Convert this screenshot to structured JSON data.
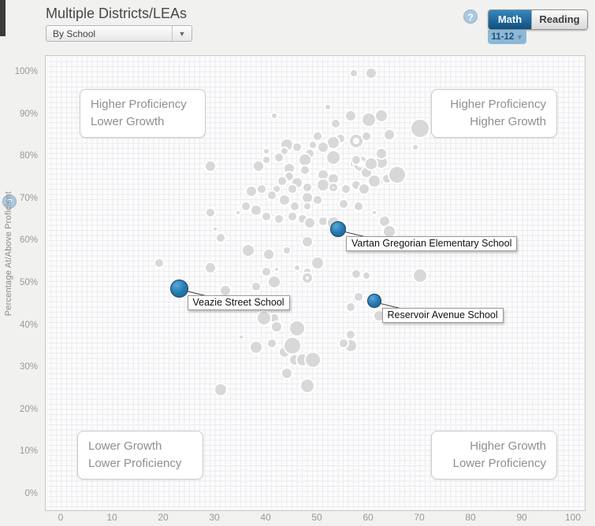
{
  "header": {
    "title": "Multiple Districts/LEAs",
    "view_dropdown": {
      "value": "By School",
      "arrow": "▼"
    },
    "help_icon": "?",
    "subject_tabs": [
      {
        "label": "Math",
        "selected": true
      },
      {
        "label": "Reading",
        "selected": false
      }
    ],
    "grade_dropdown": {
      "value": "11-12",
      "arrow": "▼"
    }
  },
  "left_panel": {
    "help_icon": "?"
  },
  "colors": {
    "highlight": "#2176ad",
    "highlight_light": "#5aa7da",
    "highlight_dark": "#16679f",
    "bubble": "#d8d8d8",
    "selected_tab": "#0d4e7f",
    "grade_button": "#8cb8d7"
  },
  "chart_data": {
    "type": "scatter",
    "title": "",
    "xlabel": "",
    "ylabel": "Percentage At/Above Proficient",
    "xlim": [
      0,
      100
    ],
    "ylim": [
      0,
      100
    ],
    "grid": true,
    "x_ticks": [
      "0",
      "10",
      "20",
      "30",
      "40",
      "50",
      "60",
      "70",
      "80",
      "90",
      "100"
    ],
    "y_ticks": [
      "0%",
      "10%",
      "20%",
      "30%",
      "40%",
      "50%",
      "60%",
      "70%",
      "80%",
      "90%",
      "100%"
    ],
    "quadrant_labels": [
      {
        "position": "top-left",
        "lines": [
          "Higher Proficiency",
          "Lower Growth"
        ]
      },
      {
        "position": "top-right",
        "lines": [
          "Higher Proficiency",
          "Higher Growth"
        ]
      },
      {
        "position": "bottom-left",
        "lines": [
          "Lower Growth",
          "Lower Proficiency"
        ]
      },
      {
        "position": "bottom-right",
        "lines": [
          "Higher Growth",
          "Lower Proficiency"
        ]
      }
    ],
    "highlighted_points": [
      {
        "name": "Veazie Street School",
        "x": 23,
        "y": 49,
        "r": 11.5
      },
      {
        "name": "Vartan Gregorian Elementary School",
        "x": 54,
        "y": 63,
        "r": 10
      },
      {
        "name": "Reservoir Avenue School",
        "x": 61,
        "y": 46,
        "r": 9
      }
    ],
    "background_points": [
      [
        41.5,
        90,
        5
      ],
      [
        52,
        92,
        5
      ],
      [
        56.5,
        90,
        8
      ],
      [
        60,
        89,
        10
      ],
      [
        62.5,
        90,
        9
      ],
      [
        57,
        100,
        6
      ],
      [
        60.5,
        100,
        8
      ],
      [
        53.5,
        88,
        7
      ],
      [
        54.5,
        84.5,
        7
      ],
      [
        57.5,
        84,
        8,
        1
      ],
      [
        53,
        83.5,
        9
      ],
      [
        50,
        85,
        7
      ],
      [
        49,
        83,
        6
      ],
      [
        51,
        82.5,
        8
      ],
      [
        48.5,
        81,
        7
      ],
      [
        44,
        83,
        9
      ],
      [
        43.5,
        81.5,
        6
      ],
      [
        46,
        82.5,
        7
      ],
      [
        40,
        81.5,
        5
      ],
      [
        42.5,
        80,
        7
      ],
      [
        47.5,
        79.5,
        9
      ],
      [
        53,
        80,
        10
      ],
      [
        40,
        79.5,
        6
      ],
      [
        38.5,
        78,
        8
      ],
      [
        44.5,
        77.5,
        8
      ],
      [
        47.5,
        77,
        7
      ],
      [
        29,
        78,
        8
      ],
      [
        57,
        78.5,
        6
      ],
      [
        58.5,
        78.5,
        9,
        1
      ],
      [
        59.5,
        76.5,
        8
      ],
      [
        62.5,
        79,
        9
      ],
      [
        51,
        76,
        8
      ],
      [
        53,
        75,
        8
      ],
      [
        44.5,
        75.5,
        7
      ],
      [
        43,
        74.5,
        7
      ],
      [
        46,
        74,
        8
      ],
      [
        48,
        73,
        7
      ],
      [
        45,
        72.5,
        7
      ],
      [
        42,
        72.5,
        6
      ],
      [
        51,
        73.5,
        9
      ],
      [
        53,
        73,
        5,
        1
      ],
      [
        55.5,
        72.5,
        7
      ],
      [
        57.5,
        73.5,
        7
      ],
      [
        61.5,
        74.5,
        9
      ],
      [
        63.5,
        75,
        7
      ],
      [
        37,
        72,
        8
      ],
      [
        39,
        72.5,
        7
      ],
      [
        41,
        71,
        7
      ],
      [
        43.5,
        70,
        8
      ],
      [
        48,
        70.5,
        8
      ],
      [
        50,
        70,
        7
      ],
      [
        45.5,
        68.5,
        7
      ],
      [
        48,
        68.5,
        6
      ],
      [
        36,
        68.5,
        7
      ],
      [
        38,
        67.5,
        8
      ],
      [
        34.5,
        67,
        4
      ],
      [
        40,
        66,
        7
      ],
      [
        42.5,
        65.5,
        7
      ],
      [
        45,
        66,
        7
      ],
      [
        47,
        65.5,
        7
      ],
      [
        48.5,
        64.5,
        8
      ],
      [
        51,
        65,
        7
      ],
      [
        53,
        64.5,
        9
      ],
      [
        70,
        87,
        13
      ],
      [
        69,
        82.5,
        5
      ],
      [
        65.5,
        76,
        12
      ],
      [
        60.5,
        78.5,
        9
      ],
      [
        62.5,
        81,
        8
      ],
      [
        64,
        85.5,
        8
      ],
      [
        59.5,
        85,
        7
      ],
      [
        57.5,
        79.5,
        7
      ],
      [
        59,
        72.5,
        8
      ],
      [
        61,
        74.5,
        9
      ],
      [
        55,
        69,
        7
      ],
      [
        58,
        68.5,
        7
      ],
      [
        61,
        67,
        4
      ],
      [
        63,
        65,
        8
      ],
      [
        64,
        62.5,
        9
      ],
      [
        31,
        61,
        7
      ],
      [
        29,
        67,
        7
      ],
      [
        30,
        63,
        4
      ],
      [
        36.5,
        58,
        9
      ],
      [
        40.5,
        57,
        8
      ],
      [
        44,
        58,
        6
      ],
      [
        48,
        60,
        8
      ],
      [
        50,
        55,
        9
      ],
      [
        48,
        53,
        6
      ],
      [
        46,
        54,
        5
      ],
      [
        42,
        53.5,
        4
      ],
      [
        40,
        53,
        7
      ],
      [
        48,
        51.5,
        6,
        1
      ],
      [
        41.5,
        50.5,
        9
      ],
      [
        38,
        49.5,
        7
      ],
      [
        32,
        48.5,
        8
      ],
      [
        29,
        54,
        8
      ],
      [
        19,
        55,
        7
      ],
      [
        57.5,
        52.5,
        7
      ],
      [
        59.5,
        52,
        6
      ],
      [
        58,
        47,
        7
      ],
      [
        56.5,
        44.5,
        7
      ],
      [
        62,
        42.5,
        8
      ],
      [
        70,
        52,
        10
      ],
      [
        39,
        42.5,
        7
      ],
      [
        41.5,
        42,
        7
      ],
      [
        46,
        39.5,
        11
      ],
      [
        35,
        37.5,
        4
      ],
      [
        38,
        35,
        9
      ],
      [
        41,
        36,
        7
      ],
      [
        43.5,
        34,
        8
      ],
      [
        39.5,
        42,
        10
      ],
      [
        42,
        40,
        8
      ],
      [
        45,
        35.5,
        12
      ],
      [
        45.5,
        32,
        8
      ],
      [
        47,
        32,
        9
      ],
      [
        49,
        32,
        11
      ],
      [
        44,
        29,
        8
      ],
      [
        48,
        26,
        10
      ],
      [
        31,
        25,
        9
      ],
      [
        56.5,
        38,
        7
      ],
      [
        56.5,
        35.5,
        9
      ],
      [
        55,
        36,
        7
      ]
    ]
  }
}
